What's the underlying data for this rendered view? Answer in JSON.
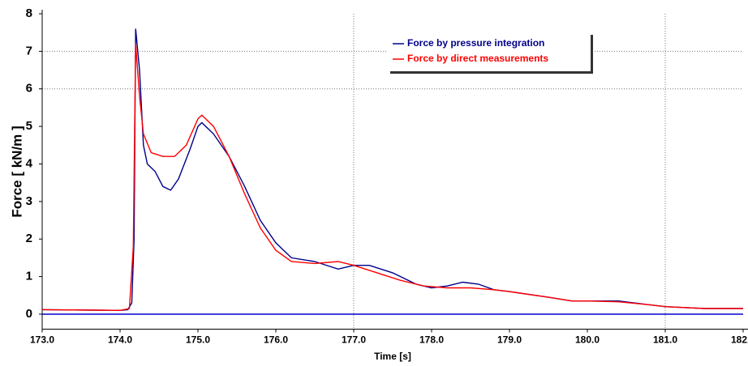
{
  "chart_data": {
    "type": "line",
    "xlabel": "Time [s]",
    "ylabel": "Force [ kN/m ]",
    "xlim": [
      173,
      182
    ],
    "ylim": [
      -0.4,
      8
    ],
    "xticks": [
      {
        "value": 173,
        "label": "173.0"
      },
      {
        "value": 174,
        "label": "174.0"
      },
      {
        "value": 175,
        "label": "175.0"
      },
      {
        "value": 176,
        "label": "176.0"
      },
      {
        "value": 177,
        "label": "177.0"
      },
      {
        "value": 178,
        "label": "178.0"
      },
      {
        "value": 179,
        "label": "179.0"
      },
      {
        "value": 180,
        "label": "180.0"
      },
      {
        "value": 181,
        "label": "181.0"
      },
      {
        "value": 182,
        "label": "182.0"
      }
    ],
    "yticks": [
      0,
      1,
      2,
      3,
      4,
      5,
      6,
      7,
      8
    ],
    "xgrid": [
      177,
      181
    ],
    "ygrid": [
      6,
      7
    ],
    "legend": "upper right",
    "series": [
      {
        "name": "Force by pressure integration",
        "color": "#00008b",
        "x": [
          173.0,
          174.0,
          174.1,
          174.15,
          174.18,
          174.2,
          174.25,
          174.3,
          174.35,
          174.45,
          174.55,
          174.65,
          174.75,
          174.9,
          175.0,
          175.05,
          175.2,
          175.4,
          175.6,
          175.8,
          176.0,
          176.2,
          176.5,
          176.8,
          177.0,
          177.2,
          177.5,
          177.8,
          178.0,
          178.2,
          178.4,
          178.6,
          178.8,
          179.0,
          179.5,
          179.8,
          180.0,
          180.4,
          180.8,
          181.0,
          181.5,
          182.0
        ],
        "values": [
          0.12,
          0.1,
          0.12,
          0.3,
          2.0,
          7.6,
          6.5,
          4.5,
          4.0,
          3.8,
          3.4,
          3.3,
          3.6,
          4.4,
          5.0,
          5.1,
          4.8,
          4.2,
          3.4,
          2.5,
          1.9,
          1.5,
          1.4,
          1.2,
          1.3,
          1.3,
          1.1,
          0.8,
          0.7,
          0.75,
          0.85,
          0.8,
          0.65,
          0.6,
          0.45,
          0.35,
          0.35,
          0.35,
          0.25,
          0.2,
          0.15,
          0.15
        ]
      },
      {
        "name": "Force by direct measurements",
        "color": "#ff0000",
        "x": [
          173.0,
          174.0,
          174.12,
          174.17,
          174.2,
          174.25,
          174.3,
          174.4,
          174.55,
          174.7,
          174.85,
          175.0,
          175.05,
          175.2,
          175.4,
          175.6,
          175.8,
          176.0,
          176.2,
          176.5,
          176.8,
          177.0,
          177.3,
          177.6,
          177.9,
          178.2,
          178.5,
          178.8,
          179.0,
          179.5,
          179.8,
          180.0,
          180.4,
          180.8,
          181.0,
          181.5,
          182.0
        ],
        "values": [
          0.12,
          0.1,
          0.15,
          1.8,
          7.2,
          5.8,
          4.8,
          4.3,
          4.2,
          4.2,
          4.5,
          5.2,
          5.3,
          5.0,
          4.2,
          3.2,
          2.3,
          1.7,
          1.4,
          1.35,
          1.4,
          1.3,
          1.1,
          0.9,
          0.75,
          0.7,
          0.7,
          0.65,
          0.6,
          0.45,
          0.35,
          0.35,
          0.33,
          0.25,
          0.2,
          0.15,
          0.15
        ]
      }
    ]
  }
}
